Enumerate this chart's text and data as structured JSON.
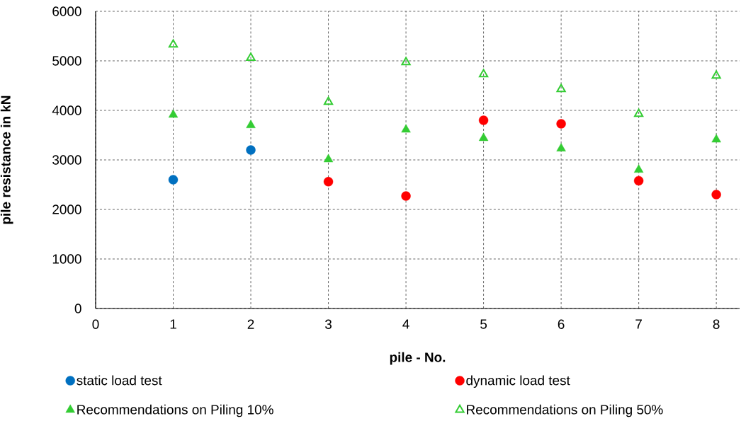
{
  "chart_data": {
    "type": "scatter",
    "xlabel": "pile - No.",
    "ylabel": "pile resistance in kN",
    "xlim": [
      0,
      8.3
    ],
    "xticks": [
      0,
      1,
      2,
      3,
      4,
      5,
      6,
      7,
      8
    ],
    "ylim": [
      0,
      6000
    ],
    "yticks": [
      0,
      1000,
      2000,
      3000,
      4000,
      5000,
      6000
    ],
    "grid": true,
    "legend": "bottom",
    "series": [
      {
        "name": "static load test",
        "color": "#0070c0",
        "marker": "circle",
        "x": [
          1,
          2
        ],
        "values": [
          2600,
          3200
        ]
      },
      {
        "name": "dynamic load test",
        "color": "#ff0000",
        "marker": "circle",
        "x": [
          3,
          4,
          5,
          6,
          7,
          8
        ],
        "values": [
          2560,
          2270,
          3800,
          3730,
          2580,
          2300
        ]
      },
      {
        "name": "Recommendations on Piling 10%",
        "color": "#33cc33",
        "marker": "triangle",
        "x": [
          1,
          2,
          3,
          4,
          5,
          6,
          7,
          8
        ],
        "values": [
          3910,
          3700,
          3010,
          3610,
          3440,
          3230,
          2800,
          3410
        ]
      },
      {
        "name": "Recommendations on Piling 50%",
        "color": "#33cc33",
        "marker": "triangle-open",
        "x": [
          1,
          2,
          3,
          4,
          5,
          6,
          7,
          8
        ],
        "values": [
          5330,
          5060,
          4170,
          4970,
          4730,
          4430,
          3930,
          4700
        ]
      }
    ]
  }
}
